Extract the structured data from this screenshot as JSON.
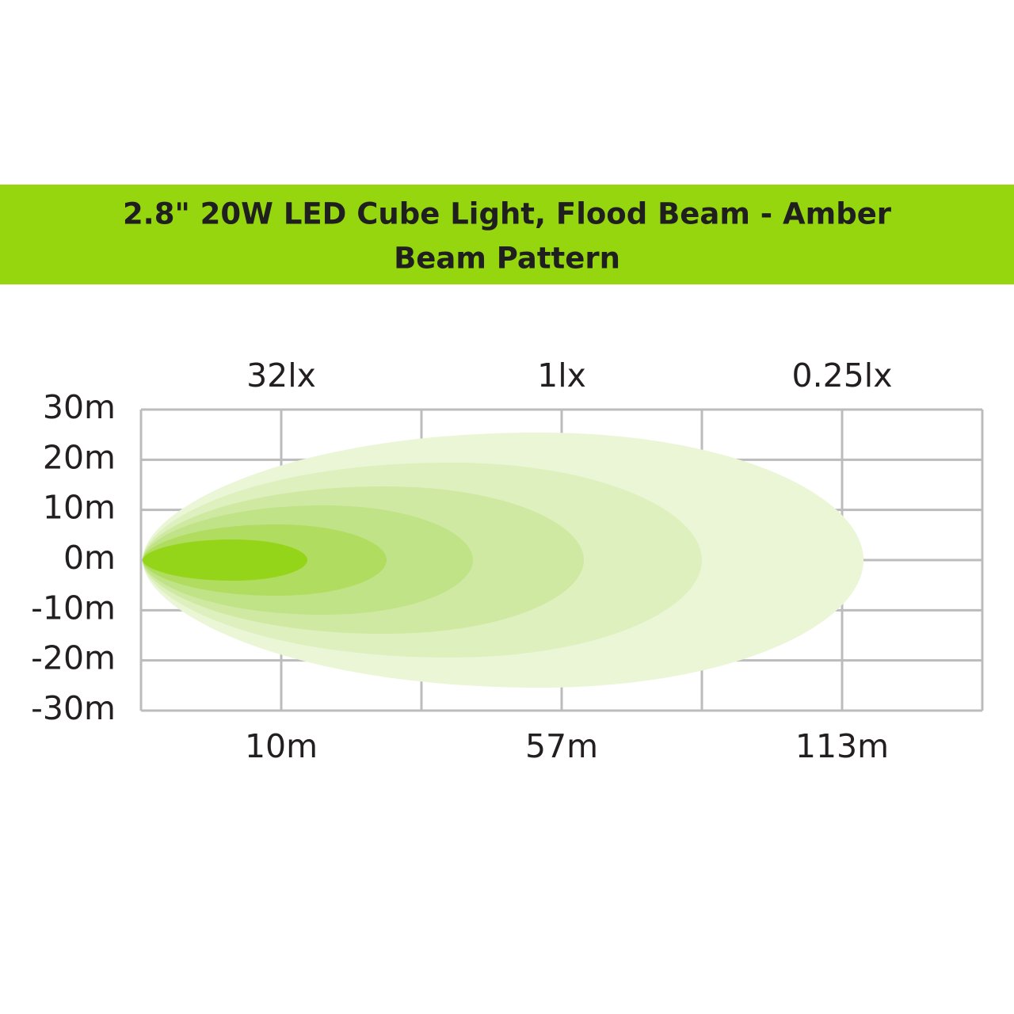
{
  "header": {
    "title_lines": [
      "2.8\" 20W LED Cube Light, Flood Beam - Amber",
      "Beam Pattern"
    ]
  },
  "diagram": {
    "y_labels": [
      "30m",
      "20m",
      "10m",
      "0m",
      "-10m",
      "-20m",
      "-30m"
    ],
    "top_labels": [
      "32lx",
      "1lx",
      "0.25lx"
    ],
    "bottom_labels": [
      "10m",
      "57m",
      "113m"
    ]
  }
}
